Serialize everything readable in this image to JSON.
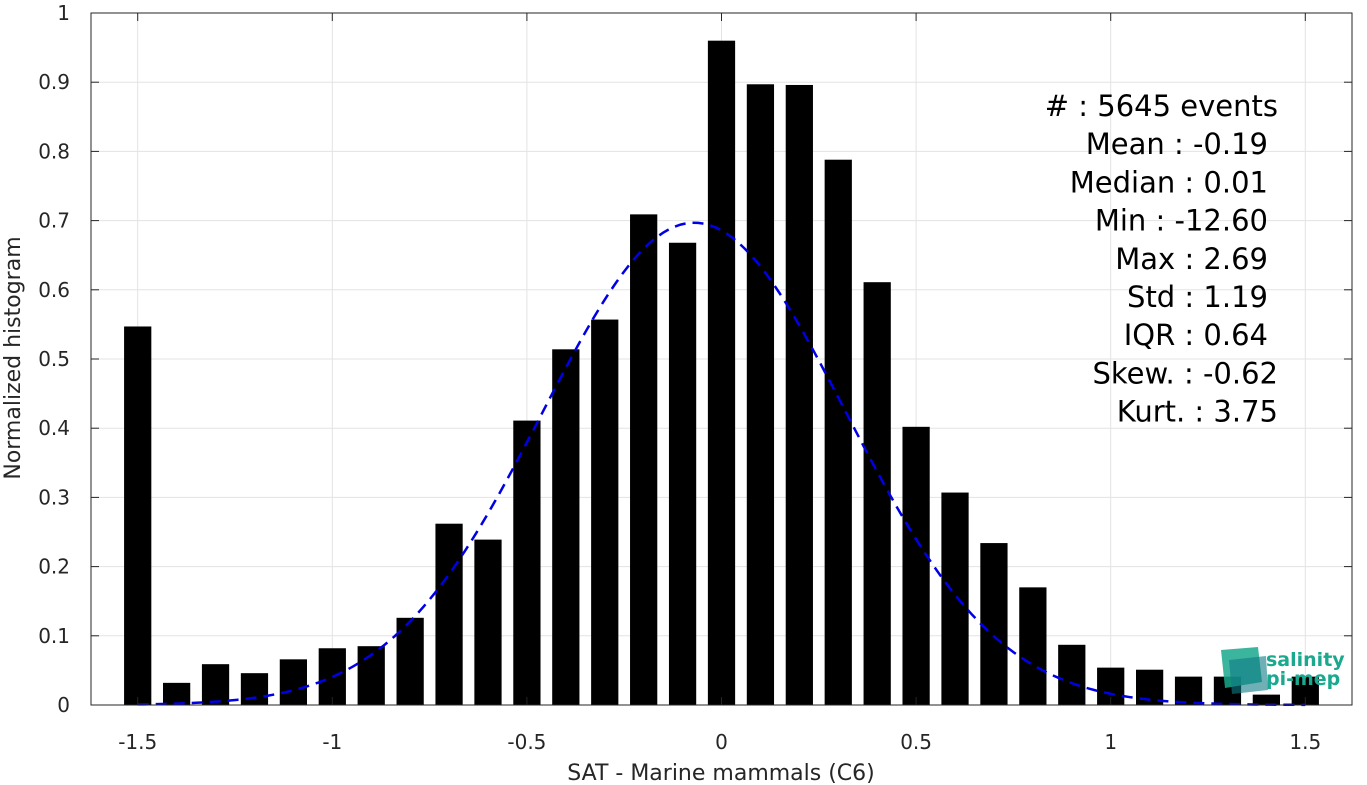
{
  "chart_data": {
    "type": "bar",
    "xlabel": "SAT - Marine mammals (C6)",
    "ylabel": "Normalized histogram",
    "xlim": [
      -1.62,
      1.62
    ],
    "ylim": [
      0,
      1
    ],
    "x_ticks": [
      -1.5,
      -1,
      -0.5,
      0,
      0.5,
      1,
      1.5
    ],
    "x_tick_labels": [
      "-1.5",
      "-1",
      "-0.5",
      "0",
      "0.5",
      "1",
      "1.5"
    ],
    "y_ticks": [
      0,
      0.1,
      0.2,
      0.3,
      0.4,
      0.5,
      0.6,
      0.7,
      0.8,
      0.9,
      1
    ],
    "y_tick_labels": [
      "0",
      "0.1",
      "0.2",
      "0.3",
      "0.4",
      "0.5",
      "0.6",
      "0.7",
      "0.8",
      "0.9",
      "1"
    ],
    "grid": true,
    "bar_color": "#000000",
    "bar_width": 0.07,
    "bins": [
      -1.5,
      -1.4,
      -1.3,
      -1.2,
      -1.1,
      -1.0,
      -0.9,
      -0.8,
      -0.7,
      -0.6,
      -0.5,
      -0.4,
      -0.3,
      -0.2,
      -0.1,
      0.0,
      0.1,
      0.2,
      0.3,
      0.4,
      0.5,
      0.6,
      0.7,
      0.8,
      0.9,
      1.0,
      1.1,
      1.2,
      1.3,
      1.4,
      1.5
    ],
    "values": [
      0.547,
      0.032,
      0.059,
      0.046,
      0.066,
      0.082,
      0.085,
      0.126,
      0.262,
      0.239,
      0.411,
      0.514,
      0.557,
      0.709,
      0.668,
      0.96,
      0.897,
      0.896,
      0.788,
      0.611,
      0.402,
      0.307,
      0.234,
      0.17,
      0.087,
      0.054,
      0.051,
      0.041,
      0.041,
      0.015,
      0.041
    ],
    "fit": {
      "type": "gaussian",
      "style": "dashed",
      "color": "#0000e6",
      "mean": -0.07,
      "std": 0.39,
      "peak": 0.697,
      "x_range": [
        -1.5,
        1.5
      ]
    },
    "stats": [
      {
        "label": "#  : 5645 events"
      },
      {
        "label": "Mean : -0.19"
      },
      {
        "label": "Median : 0.01"
      },
      {
        "label": "Min : -12.60"
      },
      {
        "label": "Max : 2.69"
      },
      {
        "label": "Std : 1.19"
      },
      {
        "label": "IQR : 0.64"
      },
      {
        "label": "Skew. : -0.62"
      },
      {
        "label": "Kurt. : 3.75"
      }
    ]
  },
  "logo": {
    "line1": "salinity",
    "line2": "pi-mep",
    "color": "#1aa88e"
  }
}
